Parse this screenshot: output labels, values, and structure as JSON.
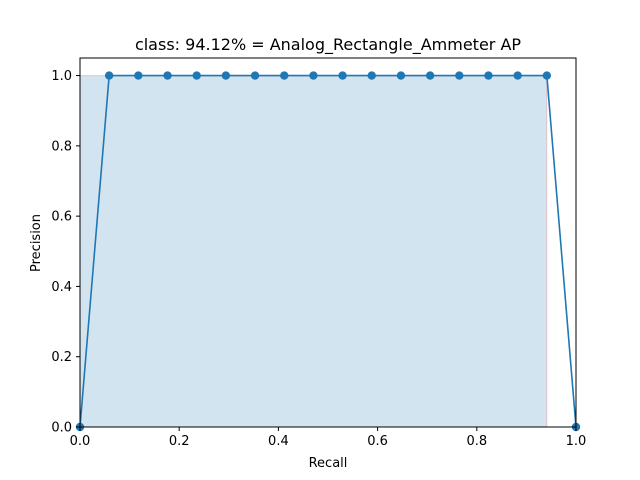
{
  "chart_data": {
    "type": "line",
    "title": "class: 94.12% = Analog_Rectangle_Ammeter AP",
    "xlabel": "Recall",
    "ylabel": "Precision",
    "xlim": [
      0.0,
      1.0
    ],
    "ylim": [
      0.0,
      1.05
    ],
    "grid": false,
    "x_ticks": [
      "0.0",
      "0.2",
      "0.4",
      "0.6",
      "0.8",
      "1.0"
    ],
    "y_ticks": [
      "0.0",
      "0.2",
      "0.4",
      "0.6",
      "0.8",
      "1.0"
    ],
    "series": [
      {
        "color": "#1f77b4",
        "marker": "circle",
        "x": [
          0.0,
          0.0588,
          0.1176,
          0.1765,
          0.2353,
          0.2941,
          0.3529,
          0.4118,
          0.4706,
          0.5294,
          0.5882,
          0.6471,
          0.7059,
          0.7647,
          0.8235,
          0.8824,
          0.9412,
          1.0
        ],
        "y": [
          0.0,
          1.0,
          1.0,
          1.0,
          1.0,
          1.0,
          1.0,
          1.0,
          1.0,
          1.0,
          1.0,
          1.0,
          1.0,
          1.0,
          1.0,
          1.0,
          1.0,
          0.0
        ]
      }
    ],
    "area": {
      "color": "#1f77b4",
      "opacity": 0.2,
      "edge_color": "#ff0000",
      "x": [
        0.0,
        0.9412
      ],
      "y": [
        1.0,
        1.0
      ]
    }
  }
}
